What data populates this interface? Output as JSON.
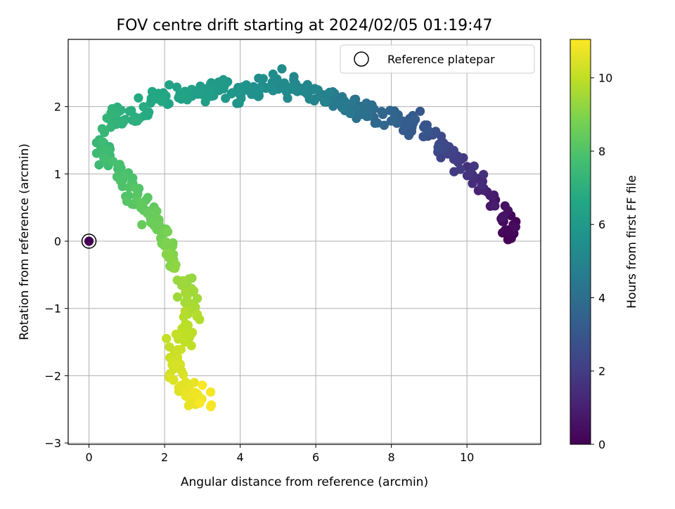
{
  "chart_data": {
    "type": "scatter",
    "title": "FOV centre drift starting at 2024/02/05 01:19:47",
    "xlabel": "Angular distance from reference (arcmin)",
    "ylabel": "Rotation from reference (arcmin)",
    "colorbar_label": "Hours from first FF file",
    "xlim": [
      -0.55,
      11.95
    ],
    "ylim": [
      -3.02,
      3.0
    ],
    "x_ticks": [
      0,
      2,
      4,
      6,
      8,
      10
    ],
    "y_ticks": [
      -3,
      -2,
      -1,
      0,
      1,
      2
    ],
    "x_tick_labels": [
      "0",
      "2",
      "4",
      "6",
      "8",
      "10"
    ],
    "y_tick_labels": [
      "−3",
      "−2",
      "−1",
      "0",
      "1",
      "2"
    ],
    "colorbar_range": [
      0,
      11.05
    ],
    "colorbar_ticks": [
      0,
      2,
      4,
      6,
      8,
      10
    ],
    "colorbar_tick_labels": [
      "0",
      "2",
      "4",
      "6",
      "8",
      "10"
    ],
    "colormap": "viridis",
    "grid": true,
    "legend": {
      "position": "top-right",
      "entries": [
        "Reference platepar"
      ]
    },
    "reference_point": {
      "x": 0,
      "y": 0,
      "color": "#440154"
    },
    "track_description": [
      {
        "x": 11.25,
        "y": 0.1,
        "hours": 0.0
      },
      {
        "x": 10.9,
        "y": 0.45,
        "hours": 0.5
      },
      {
        "x": 10.5,
        "y": 0.7,
        "hours": 1.0
      },
      {
        "x": 10.2,
        "y": 0.95,
        "hours": 1.5
      },
      {
        "x": 9.7,
        "y": 1.25,
        "hours": 2.0
      },
      {
        "x": 9.2,
        "y": 1.5,
        "hours": 2.5
      },
      {
        "x": 8.8,
        "y": 1.7,
        "hours": 3.0
      },
      {
        "x": 8.0,
        "y": 1.8,
        "hours": 3.5
      },
      {
        "x": 7.3,
        "y": 1.95,
        "hours": 4.0
      },
      {
        "x": 6.6,
        "y": 2.1,
        "hours": 4.5
      },
      {
        "x": 6.0,
        "y": 2.2,
        "hours": 5.0
      },
      {
        "x": 5.0,
        "y": 2.35,
        "hours": 5.3
      },
      {
        "x": 4.2,
        "y": 2.2,
        "hours": 5.6
      },
      {
        "x": 3.4,
        "y": 2.25,
        "hours": 6.0
      },
      {
        "x": 2.6,
        "y": 2.2,
        "hours": 6.3
      },
      {
        "x": 1.8,
        "y": 2.1,
        "hours": 6.6
      },
      {
        "x": 1.2,
        "y": 1.9,
        "hours": 6.9
      },
      {
        "x": 0.5,
        "y": 1.75,
        "hours": 7.2
      },
      {
        "x": 0.3,
        "y": 1.3,
        "hours": 7.5
      },
      {
        "x": 0.8,
        "y": 1.0,
        "hours": 7.8
      },
      {
        "x": 1.3,
        "y": 0.6,
        "hours": 8.2
      },
      {
        "x": 1.9,
        "y": 0.2,
        "hours": 8.6
      },
      {
        "x": 2.2,
        "y": -0.2,
        "hours": 9.0
      },
      {
        "x": 2.6,
        "y": -0.7,
        "hours": 9.4
      },
      {
        "x": 2.75,
        "y": -1.2,
        "hours": 9.8
      },
      {
        "x": 2.35,
        "y": -1.6,
        "hours": 10.1
      },
      {
        "x": 2.3,
        "y": -2.0,
        "hours": 10.4
      },
      {
        "x": 2.7,
        "y": -2.3,
        "hours": 10.7
      },
      {
        "x": 3.2,
        "y": -2.35,
        "hours": 11.0
      }
    ]
  }
}
